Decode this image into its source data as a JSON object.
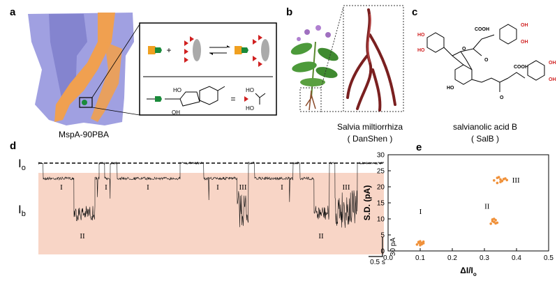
{
  "panels": {
    "a": {
      "label": "a",
      "caption": "MspA-90PBA",
      "inset_labels": [
        "+",
        "HO",
        "OH",
        "=",
        "HO",
        "HO"
      ]
    },
    "b": {
      "label": "b",
      "caption": "Salvia miltiorrhiza",
      "subcaption": "( DanShen )"
    },
    "c": {
      "label": "c",
      "caption": "salvianolic acid B",
      "subcaption": "( SalB )",
      "atoms": [
        "HO",
        "HO",
        "COOH",
        "OH",
        "OH",
        "O",
        "O",
        "O",
        "COOH",
        "OH",
        "OH",
        "HO"
      ]
    },
    "d": {
      "label": "d",
      "open_level": {
        "main": "I",
        "sub": "o"
      },
      "blocked_level": {
        "main": "I",
        "sub": "b"
      },
      "states": [
        "I",
        "II",
        "I",
        "I",
        "I",
        "III",
        "I",
        "II",
        "III"
      ],
      "scale_current": "30 pA",
      "scale_time": "0.5 s"
    },
    "e": {
      "label": "e"
    }
  },
  "chart_data": {
    "type": "scatter",
    "xlabel": {
      "main": "ΔI/I",
      "sub": "o"
    },
    "ylabel": "S.D. (pA)",
    "xlim": [
      0,
      0.5
    ],
    "xticks": [
      {
        "value": 0,
        "label": "0.0"
      },
      0.1,
      0.2,
      0.3,
      0.4,
      0.5
    ],
    "ylim": [
      0,
      30
    ],
    "yticks": [
      0,
      5,
      10,
      15,
      20,
      25,
      30
    ],
    "color": "#f0913a",
    "series": [
      {
        "name": "I",
        "x": [
          0.09,
          0.095,
          0.1,
          0.1,
          0.105,
          0.11,
          0.1,
          0.095,
          0.11,
          0.105
        ],
        "values": [
          2.0,
          2.8,
          2.2,
          3.0,
          2.5,
          2.4,
          1.8,
          2.6,
          2.9,
          2.1
        ]
      },
      {
        "name": "II",
        "x": [
          0.32,
          0.325,
          0.33,
          0.335,
          0.34,
          0.33,
          0.325,
          0.335
        ],
        "values": [
          8.5,
          9.3,
          9.0,
          9.6,
          8.8,
          10.0,
          9.8,
          8.6
        ]
      },
      {
        "name": "III",
        "x": [
          0.33,
          0.34,
          0.35,
          0.36,
          0.37,
          0.345,
          0.355,
          0.365,
          0.34,
          0.35
        ],
        "values": [
          22.0,
          22.8,
          21.5,
          22.4,
          22.1,
          23.0,
          21.8,
          22.6,
          21.2,
          22.3
        ]
      }
    ]
  }
}
